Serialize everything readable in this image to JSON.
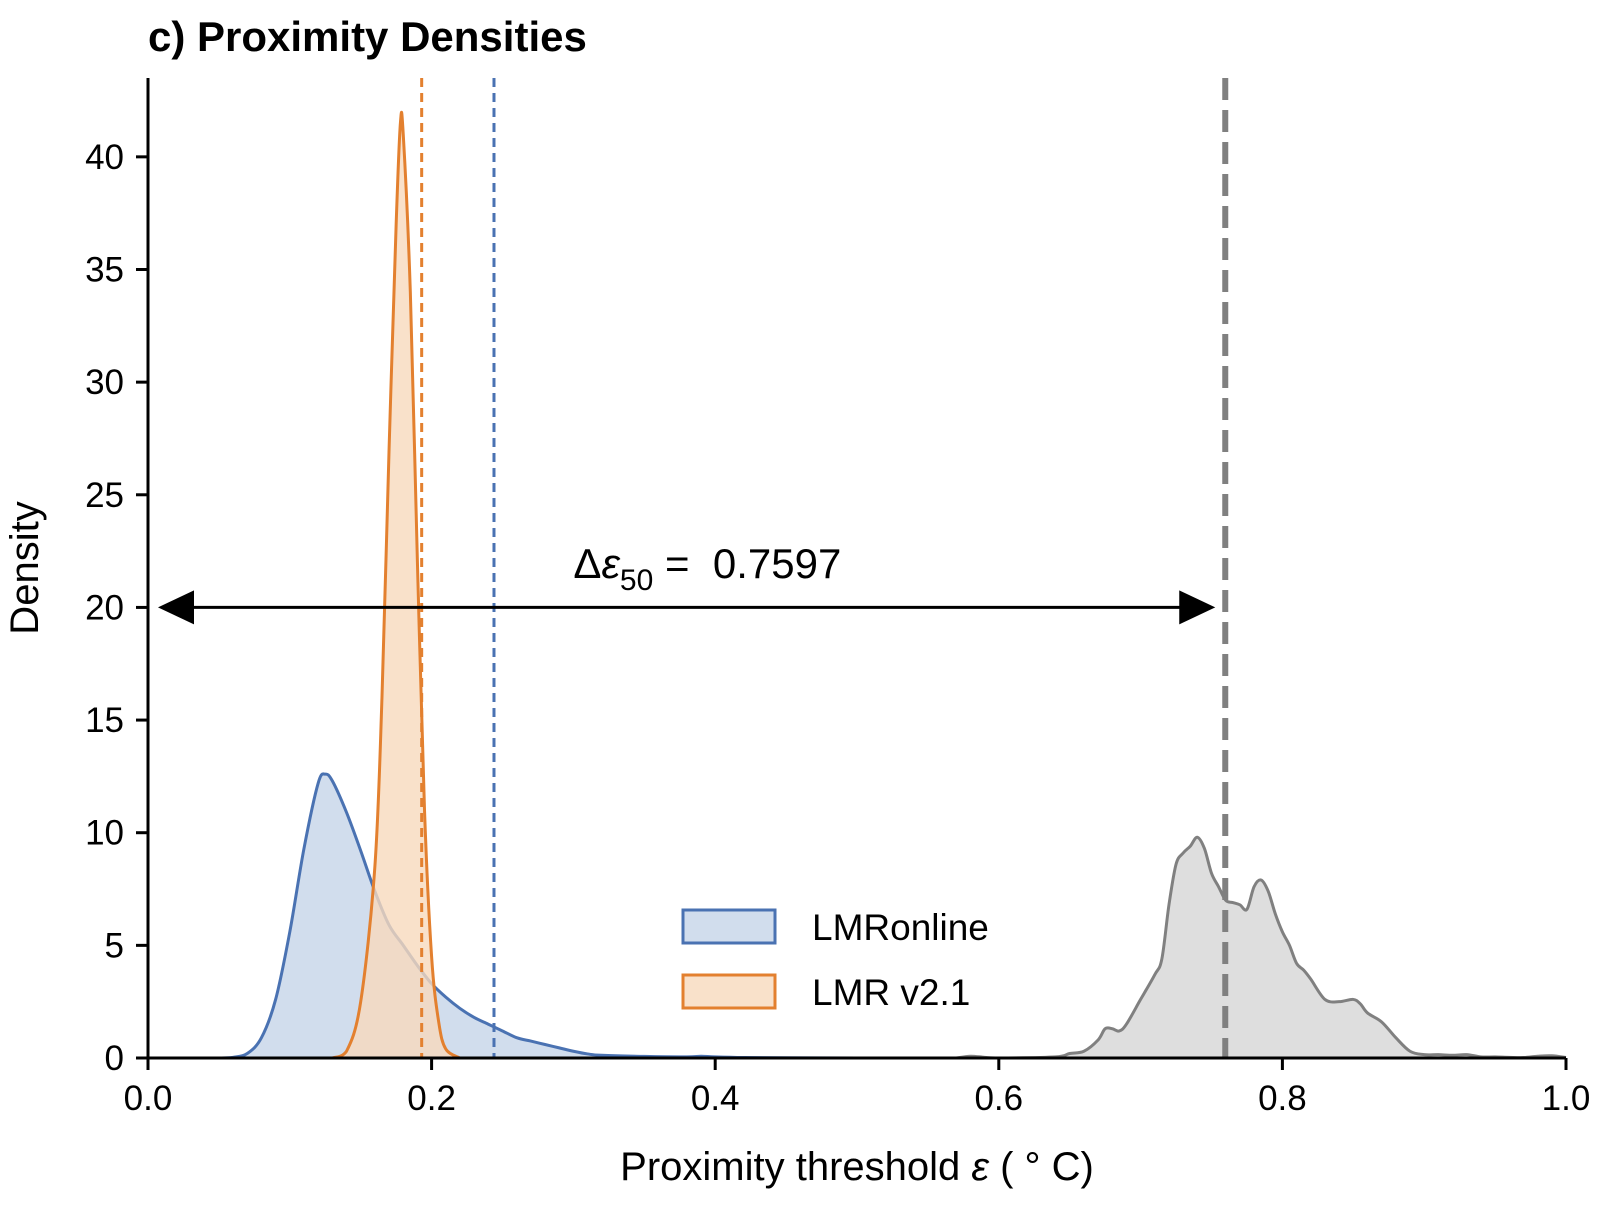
{
  "chart_data": {
    "type": "area",
    "title": "c) Proximity Densities",
    "xlabel_prefix": "Proximity threshold ",
    "xlabel_symbol": "ε",
    "xlabel_unit": " ( ° C)",
    "ylabel": "Density",
    "xlim": [
      0.0,
      1.0
    ],
    "ylim": [
      0,
      43.5
    ],
    "x_ticks": [
      0.0,
      0.2,
      0.4,
      0.6,
      0.8,
      1.0
    ],
    "x_tick_labels": [
      "0.0",
      "0.2",
      "0.4",
      "0.6",
      "0.8",
      "1.0"
    ],
    "y_ticks": [
      0,
      5,
      10,
      15,
      20,
      25,
      30,
      35,
      40
    ],
    "y_tick_labels": [
      "0",
      "5",
      "10",
      "15",
      "20",
      "25",
      "30",
      "35",
      "40"
    ],
    "grid": false,
    "legend_position": "bottom-center",
    "series": [
      {
        "name": "LMRonline",
        "line_color": "#4a72b2",
        "fill_color": "#c6d5e8",
        "points": [
          [
            0.05,
            0
          ],
          [
            0.06,
            0.03
          ],
          [
            0.07,
            0.2
          ],
          [
            0.08,
            0.9
          ],
          [
            0.09,
            2.6
          ],
          [
            0.1,
            5.6
          ],
          [
            0.11,
            9.3
          ],
          [
            0.12,
            12.2
          ],
          [
            0.125,
            12.6
          ],
          [
            0.13,
            12.3
          ],
          [
            0.14,
            10.9
          ],
          [
            0.15,
            9.2
          ],
          [
            0.16,
            7.4
          ],
          [
            0.17,
            5.9
          ],
          [
            0.18,
            5.0
          ],
          [
            0.19,
            4.1
          ],
          [
            0.2,
            3.3
          ],
          [
            0.21,
            2.7
          ],
          [
            0.22,
            2.2
          ],
          [
            0.23,
            1.8
          ],
          [
            0.24,
            1.5
          ],
          [
            0.25,
            1.2
          ],
          [
            0.26,
            0.9
          ],
          [
            0.27,
            0.75
          ],
          [
            0.28,
            0.6
          ],
          [
            0.29,
            0.45
          ],
          [
            0.3,
            0.3
          ],
          [
            0.31,
            0.18
          ],
          [
            0.32,
            0.12
          ],
          [
            0.35,
            0.07
          ],
          [
            0.38,
            0.05
          ],
          [
            0.39,
            0.08
          ],
          [
            0.4,
            0.05
          ],
          [
            0.42,
            0.02
          ],
          [
            0.45,
            0.01
          ],
          [
            0.5,
            0
          ]
        ]
      },
      {
        "name": "LMR v2.1",
        "line_color": "#e3802f",
        "fill_color": "#f8d9bd",
        "points": [
          [
            0.13,
            0
          ],
          [
            0.14,
            0.3
          ],
          [
            0.15,
            2.5
          ],
          [
            0.16,
            8.5
          ],
          [
            0.165,
            16
          ],
          [
            0.17,
            27
          ],
          [
            0.175,
            37
          ],
          [
            0.178,
            41.5
          ],
          [
            0.18,
            41.0
          ],
          [
            0.185,
            34
          ],
          [
            0.19,
            22
          ],
          [
            0.195,
            11
          ],
          [
            0.2,
            4.5
          ],
          [
            0.205,
            1.6
          ],
          [
            0.21,
            0.4
          ],
          [
            0.22,
            0
          ]
        ]
      },
      {
        "name": "",
        "line_color": "#808080",
        "fill_color": "#dcdcdc",
        "points": [
          [
            0.57,
            0
          ],
          [
            0.58,
            0.08
          ],
          [
            0.59,
            0.03
          ],
          [
            0.6,
            0
          ],
          [
            0.64,
            0.05
          ],
          [
            0.65,
            0.2
          ],
          [
            0.66,
            0.3
          ],
          [
            0.67,
            0.8
          ],
          [
            0.675,
            1.3
          ],
          [
            0.68,
            1.3
          ],
          [
            0.685,
            1.2
          ],
          [
            0.69,
            1.5
          ],
          [
            0.7,
            2.6
          ],
          [
            0.71,
            3.7
          ],
          [
            0.715,
            4.4
          ],
          [
            0.72,
            6.8
          ],
          [
            0.725,
            8.6
          ],
          [
            0.73,
            9.1
          ],
          [
            0.735,
            9.4
          ],
          [
            0.74,
            9.8
          ],
          [
            0.745,
            9.3
          ],
          [
            0.75,
            8.2
          ],
          [
            0.755,
            7.6
          ],
          [
            0.76,
            7.0
          ],
          [
            0.765,
            6.9
          ],
          [
            0.77,
            6.8
          ],
          [
            0.775,
            6.6
          ],
          [
            0.78,
            7.6
          ],
          [
            0.785,
            7.9
          ],
          [
            0.79,
            7.4
          ],
          [
            0.795,
            6.4
          ],
          [
            0.8,
            5.6
          ],
          [
            0.805,
            5.0
          ],
          [
            0.81,
            4.2
          ],
          [
            0.815,
            3.9
          ],
          [
            0.82,
            3.5
          ],
          [
            0.83,
            2.6
          ],
          [
            0.84,
            2.5
          ],
          [
            0.85,
            2.6
          ],
          [
            0.855,
            2.4
          ],
          [
            0.86,
            2.0
          ],
          [
            0.87,
            1.6
          ],
          [
            0.88,
            0.9
          ],
          [
            0.89,
            0.3
          ],
          [
            0.9,
            0.15
          ],
          [
            0.91,
            0.15
          ],
          [
            0.92,
            0.12
          ],
          [
            0.93,
            0.15
          ],
          [
            0.94,
            0.05
          ],
          [
            0.95,
            0.05
          ],
          [
            0.96,
            0.03
          ],
          [
            0.97,
            0.02
          ],
          [
            0.98,
            0.08
          ],
          [
            0.99,
            0.1
          ],
          [
            1.0,
            0.02
          ]
        ]
      }
    ],
    "vlines": [
      {
        "x": 0.193,
        "color": "#e3802f",
        "style": "dashed-thin"
      },
      {
        "x": 0.244,
        "color": "#4a72b2",
        "style": "dashed-thin"
      },
      {
        "x": 0.7597,
        "color": "#808080",
        "style": "dashed-thick"
      }
    ],
    "arrow": {
      "x1": 0.0,
      "x2": 0.7597,
      "y": 20
    },
    "annotation": {
      "prefix": "Δ",
      "symbol": "ε",
      "subscript": "50",
      "equals": " =  ",
      "value": "0.7597",
      "x": 0.3,
      "y": 21.3
    }
  }
}
